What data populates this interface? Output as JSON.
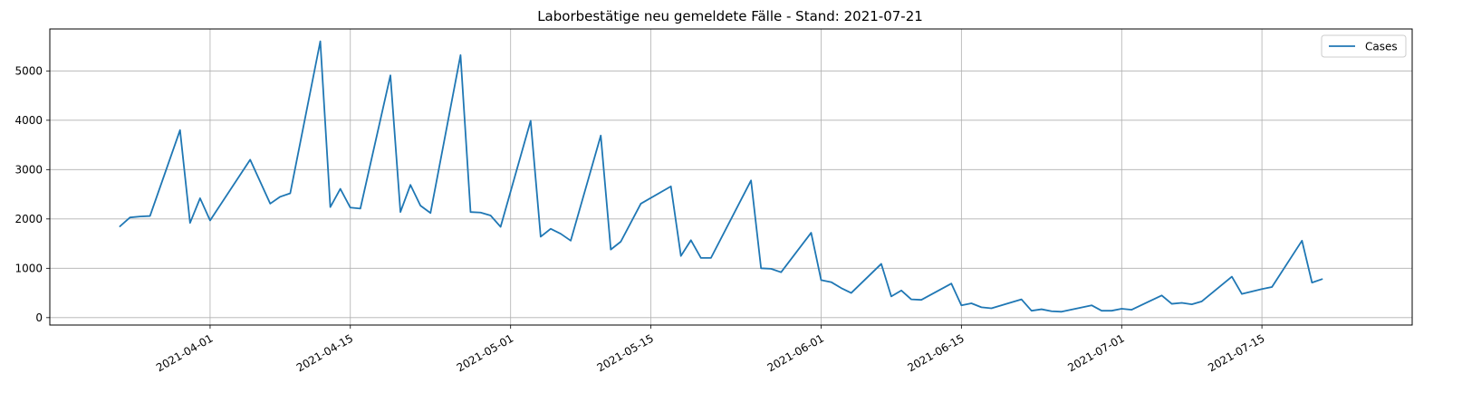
{
  "chart_data": {
    "type": "line",
    "title": "Laborbestätige neu gemeldete Fälle - Stand: 2021-07-21",
    "xlabel": "",
    "ylabel": "",
    "x_axis": "date",
    "xlim": [
      "2021-03-16",
      "2021-07-30"
    ],
    "ylim": [
      -150,
      5850
    ],
    "x_ticks": [
      "2021-04-01",
      "2021-04-15",
      "2021-05-01",
      "2021-05-15",
      "2021-06-01",
      "2021-06-15",
      "2021-07-01",
      "2021-07-15"
    ],
    "y_ticks": [
      0,
      1000,
      2000,
      3000,
      4000,
      5000
    ],
    "grid": true,
    "legend_position": "top-right",
    "series": [
      {
        "name": "Cases",
        "color": "#1f77b4",
        "points": [
          [
            "2021-03-23",
            1850
          ],
          [
            "2021-03-24",
            2030
          ],
          [
            "2021-03-25",
            2050
          ],
          [
            "2021-03-26",
            2060
          ],
          [
            "2021-03-29",
            3800
          ],
          [
            "2021-03-30",
            1920
          ],
          [
            "2021-03-31",
            2420
          ],
          [
            "2021-04-01",
            1970
          ],
          [
            "2021-04-05",
            3200
          ],
          [
            "2021-04-07",
            2310
          ],
          [
            "2021-04-08",
            2450
          ],
          [
            "2021-04-09",
            2520
          ],
          [
            "2021-04-12",
            5600
          ],
          [
            "2021-04-13",
            2240
          ],
          [
            "2021-04-14",
            2610
          ],
          [
            "2021-04-15",
            2230
          ],
          [
            "2021-04-16",
            2210
          ],
          [
            "2021-04-19",
            4910
          ],
          [
            "2021-04-20",
            2140
          ],
          [
            "2021-04-21",
            2690
          ],
          [
            "2021-04-22",
            2270
          ],
          [
            "2021-04-23",
            2120
          ],
          [
            "2021-04-26",
            5320
          ],
          [
            "2021-04-27",
            2140
          ],
          [
            "2021-04-28",
            2130
          ],
          [
            "2021-04-29",
            2070
          ],
          [
            "2021-04-30",
            1840
          ],
          [
            "2021-05-03",
            3990
          ],
          [
            "2021-05-04",
            1640
          ],
          [
            "2021-05-05",
            1800
          ],
          [
            "2021-05-06",
            1700
          ],
          [
            "2021-05-07",
            1560
          ],
          [
            "2021-05-10",
            3690
          ],
          [
            "2021-05-11",
            1380
          ],
          [
            "2021-05-12",
            1540
          ],
          [
            "2021-05-14",
            2310
          ],
          [
            "2021-05-17",
            2660
          ],
          [
            "2021-05-18",
            1250
          ],
          [
            "2021-05-19",
            1570
          ],
          [
            "2021-05-20",
            1210
          ],
          [
            "2021-05-21",
            1210
          ],
          [
            "2021-05-25",
            2780
          ],
          [
            "2021-05-26",
            1000
          ],
          [
            "2021-05-27",
            990
          ],
          [
            "2021-05-28",
            920
          ],
          [
            "2021-05-31",
            1720
          ],
          [
            "2021-06-01",
            760
          ],
          [
            "2021-06-02",
            720
          ],
          [
            "2021-06-03",
            600
          ],
          [
            "2021-06-04",
            500
          ],
          [
            "2021-06-07",
            1090
          ],
          [
            "2021-06-08",
            430
          ],
          [
            "2021-06-09",
            550
          ],
          [
            "2021-06-10",
            370
          ],
          [
            "2021-06-11",
            360
          ],
          [
            "2021-06-14",
            690
          ],
          [
            "2021-06-15",
            250
          ],
          [
            "2021-06-16",
            290
          ],
          [
            "2021-06-17",
            210
          ],
          [
            "2021-06-18",
            190
          ],
          [
            "2021-06-21",
            370
          ],
          [
            "2021-06-22",
            140
          ],
          [
            "2021-06-23",
            170
          ],
          [
            "2021-06-24",
            130
          ],
          [
            "2021-06-25",
            120
          ],
          [
            "2021-06-28",
            250
          ],
          [
            "2021-06-29",
            140
          ],
          [
            "2021-06-30",
            140
          ],
          [
            "2021-07-01",
            180
          ],
          [
            "2021-07-02",
            160
          ],
          [
            "2021-07-05",
            450
          ],
          [
            "2021-07-06",
            280
          ],
          [
            "2021-07-07",
            300
          ],
          [
            "2021-07-08",
            270
          ],
          [
            "2021-07-09",
            330
          ],
          [
            "2021-07-12",
            830
          ],
          [
            "2021-07-13",
            480
          ],
          [
            "2021-07-15",
            580
          ],
          [
            "2021-07-16",
            620
          ],
          [
            "2021-07-19",
            1560
          ],
          [
            "2021-07-20",
            710
          ],
          [
            "2021-07-21",
            780
          ]
        ]
      }
    ]
  }
}
